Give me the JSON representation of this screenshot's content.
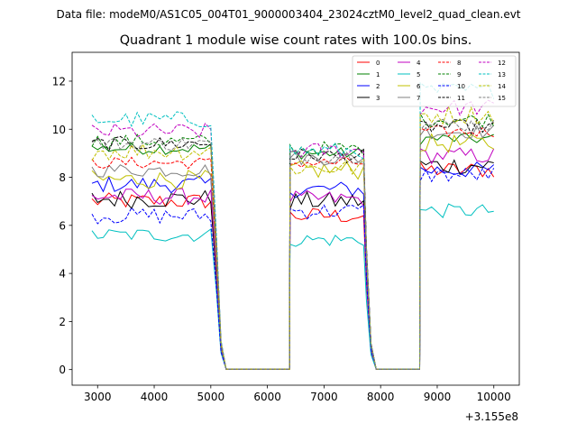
{
  "chart_data": {
    "type": "line",
    "suptitle": "Data file: modeM0/AS1C05_004T01_9000003404_23024cztM0_level2_quad_clean.evt",
    "title": "Quadrant 1 module wise count rates with 100.0s bins.",
    "xlabel": "",
    "ylabel": "",
    "x_offset_label": "+3.155e8",
    "xlim": [
      2550,
      10450
    ],
    "ylim": [
      -0.65,
      13.2
    ],
    "xticks": [
      3000,
      4000,
      5000,
      6000,
      7000,
      8000,
      9000,
      10000
    ],
    "yticks": [
      0,
      2,
      4,
      6,
      8,
      10,
      12
    ],
    "legend_position": "top-right",
    "segments": [
      {
        "start": 2900,
        "end": 5050,
        "step": 100
      },
      {
        "start": 6400,
        "end": 7700,
        "step": 100
      },
      {
        "start": 8700,
        "end": 10050,
        "step": 100
      }
    ],
    "gaps": [
      {
        "start": 5050,
        "end": 6400,
        "floor": 0.02
      },
      {
        "start": 7700,
        "end": 8700,
        "floor": 0.02
      }
    ],
    "series": [
      {
        "name": "0",
        "color": "#ff0000",
        "dash": "solid",
        "levels": [
          7.0,
          6.4,
          8.3
        ],
        "noise": 0.35
      },
      {
        "name": "1",
        "color": "#008000",
        "dash": "solid",
        "levels": [
          9.2,
          9.0,
          9.6
        ],
        "noise": 0.25
      },
      {
        "name": "2",
        "color": "#0000ff",
        "dash": "solid",
        "levels": [
          7.7,
          7.5,
          8.3
        ],
        "noise": 0.35
      },
      {
        "name": "3",
        "color": "#000000",
        "dash": "solid",
        "levels": [
          7.1,
          7.0,
          8.5
        ],
        "noise": 0.4
      },
      {
        "name": "4",
        "color": "#c000c0",
        "dash": "solid",
        "levels": [
          7.2,
          7.1,
          8.9
        ],
        "noise": 0.35
      },
      {
        "name": "5",
        "color": "#00c0c0",
        "dash": "solid",
        "levels": [
          5.6,
          5.4,
          6.6
        ],
        "noise": 0.3
      },
      {
        "name": "6",
        "color": "#c0c000",
        "dash": "solid",
        "levels": [
          7.9,
          8.3,
          9.4
        ],
        "noise": 0.4
      },
      {
        "name": "7",
        "color": "#808080",
        "dash": "solid",
        "levels": [
          8.3,
          8.8,
          9.9
        ],
        "noise": 0.3
      },
      {
        "name": "8",
        "color": "#ff0000",
        "dash": "dashed",
        "levels": [
          8.6,
          8.6,
          9.9
        ],
        "noise": 0.25
      },
      {
        "name": "9",
        "color": "#008000",
        "dash": "dashed",
        "levels": [
          9.5,
          9.2,
          10.4
        ],
        "noise": 0.3
      },
      {
        "name": "10",
        "color": "#0000ff",
        "dash": "dashed",
        "levels": [
          6.4,
          6.6,
          8.1
        ],
        "noise": 0.35
      },
      {
        "name": "11",
        "color": "#000000",
        "dash": "dashed",
        "levels": [
          9.4,
          8.9,
          10.1
        ],
        "noise": 0.3
      },
      {
        "name": "12",
        "color": "#c000c0",
        "dash": "dashed",
        "levels": [
          9.9,
          9.1,
          10.9
        ],
        "noise": 0.35
      },
      {
        "name": "13",
        "color": "#00c0c0",
        "dash": "dashed",
        "levels": [
          10.4,
          9.1,
          11.6
        ],
        "noise": 0.35
      },
      {
        "name": "14",
        "color": "#c0c000",
        "dash": "dashed",
        "levels": [
          9.1,
          8.4,
          10.6
        ],
        "noise": 0.4
      },
      {
        "name": "15",
        "color": "#808080",
        "dash": "dashed",
        "levels": [
          9.4,
          8.9,
          10.2
        ],
        "noise": 0.3
      }
    ]
  }
}
